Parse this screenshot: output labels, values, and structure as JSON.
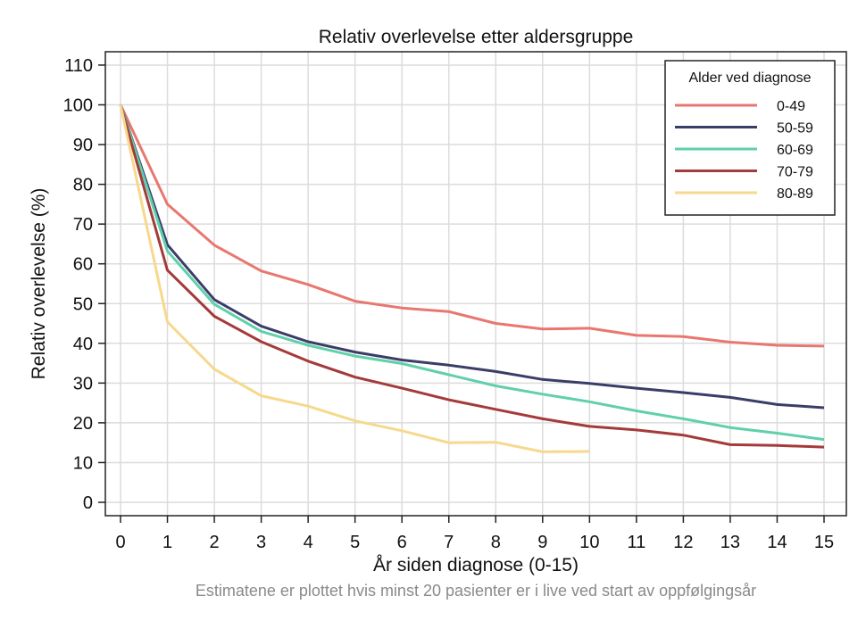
{
  "chart_data": {
    "type": "line",
    "title": "Relativ overlevelse etter aldersgruppe",
    "xlabel": "År siden diagnose (0-15)",
    "ylabel": "Relativ overlevelse (%)",
    "footnote": "Estimatene er plottet hvis minst 20 pasienter er i live ved start av oppfølgingsår",
    "xlim": [
      0,
      15
    ],
    "ylim": [
      0,
      110
    ],
    "x_ticks": [
      0,
      1,
      2,
      3,
      4,
      5,
      6,
      7,
      8,
      9,
      10,
      11,
      12,
      13,
      14,
      15
    ],
    "y_ticks": [
      0,
      10,
      20,
      30,
      40,
      50,
      60,
      70,
      80,
      90,
      100,
      110
    ],
    "grid": true,
    "legend": {
      "title": "Alder ved diagnose",
      "position": "top-right"
    },
    "series": [
      {
        "name": "0-49",
        "color": "#e8776f",
        "x": [
          0,
          1,
          2,
          3,
          4,
          5,
          6,
          7,
          8,
          9,
          10,
          11,
          12,
          13,
          14,
          15
        ],
        "values": [
          100,
          75,
          64.7,
          58.2,
          54.8,
          50.6,
          48.9,
          48,
          45,
          43.6,
          43.8,
          42,
          41.7,
          40.3,
          39.5,
          39.3
        ]
      },
      {
        "name": "50-59",
        "color": "#3b3d69",
        "x": [
          0,
          1,
          2,
          3,
          4,
          5,
          6,
          7,
          8,
          9,
          10,
          11,
          12,
          13,
          14,
          15
        ],
        "values": [
          100,
          64.8,
          51,
          44.3,
          40.4,
          37.8,
          35.8,
          34.5,
          32.9,
          30.9,
          29.9,
          28.7,
          27.6,
          26.4,
          24.6,
          23.8
        ]
      },
      {
        "name": "60-69",
        "color": "#5fd0aa",
        "x": [
          0,
          1,
          2,
          3,
          4,
          5,
          6,
          7,
          8,
          9,
          10,
          11,
          12,
          13,
          14,
          15
        ],
        "values": [
          100,
          63.2,
          49.8,
          43,
          39.5,
          36.8,
          34.9,
          32.1,
          29.3,
          27.2,
          25.3,
          23,
          21,
          18.8,
          17.4,
          15.8
        ]
      },
      {
        "name": "70-79",
        "color": "#a53a3a",
        "x": [
          0,
          1,
          2,
          3,
          4,
          5,
          6,
          7,
          8,
          9,
          10,
          11,
          12,
          13,
          14,
          15
        ],
        "values": [
          100,
          58.4,
          46.8,
          40.4,
          35.5,
          31.5,
          28.7,
          25.8,
          23.4,
          21,
          19.1,
          18.2,
          16.9,
          14.5,
          14.3,
          13.9
        ]
      },
      {
        "name": "80-89",
        "color": "#f7d88c",
        "x": [
          0,
          1,
          2,
          3,
          4,
          5,
          6,
          7,
          8,
          9,
          10
        ],
        "values": [
          100,
          45.4,
          33.5,
          26.8,
          24.2,
          20.5,
          18,
          15,
          15.1,
          12.7,
          12.8
        ]
      }
    ]
  }
}
